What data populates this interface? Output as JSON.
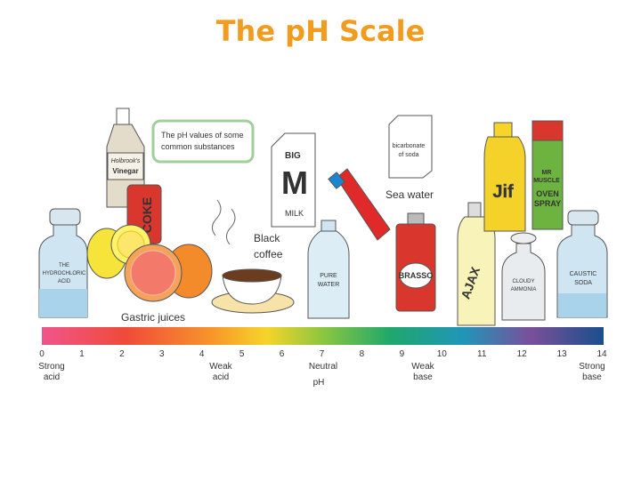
{
  "title": "The pH Scale",
  "callout": [
    "The pH values of some",
    "common substances"
  ],
  "substances": {
    "vinegar_brand": "Holbrook's",
    "vinegar": "Vinegar",
    "coke": "COKE",
    "milk_big": "BIG",
    "milk_m": "M",
    "milk": "MILK",
    "bicarbonate": [
      "bicarbonate",
      "of soda"
    ],
    "sea_water": "Sea water",
    "jif": "Jif",
    "mr_muscle": [
      "MR",
      "MUSCLE"
    ],
    "oven_spray": [
      "OVEN",
      "SPRAY"
    ],
    "coffee": [
      "Black",
      "coffee"
    ],
    "pure_water": [
      "PURE",
      "WATER"
    ],
    "brasso": "BRASSO",
    "ajax": "AJAX",
    "ammonia": [
      "CLOUDY",
      "AMMONIA"
    ],
    "caustic": [
      "CAUSTIC",
      "SODA"
    ],
    "acid": [
      "THE",
      "HYDROCHLORIC",
      "ACID"
    ],
    "gastric": "Gastric juices"
  },
  "scale": {
    "ticks": [
      0,
      1,
      2,
      3,
      4,
      5,
      6,
      7,
      8,
      9,
      10,
      11,
      12,
      13,
      14
    ],
    "strong_acid": [
      "Strong",
      "acid"
    ],
    "weak_acid": [
      "Weak",
      "acid"
    ],
    "neutral": [
      "Neutral",
      "pH"
    ],
    "weak_base": [
      "Weak",
      "base"
    ],
    "strong_base": [
      "Strong",
      "base"
    ]
  }
}
